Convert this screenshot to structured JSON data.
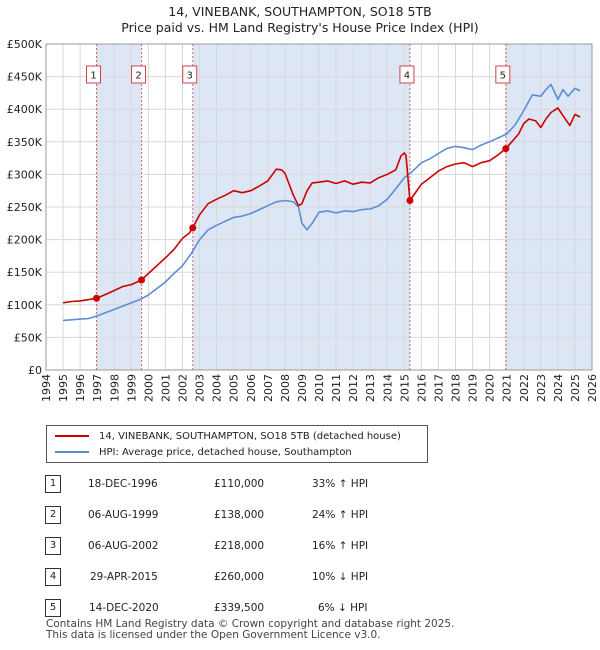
{
  "title_line1": "14, VINEBANK, SOUTHAMPTON, SO18 5TB",
  "title_line2": "Price paid vs. HM Land Registry's House Price Index (HPI)",
  "colors": {
    "red": "#cc0000",
    "blue": "#5b8ed6",
    "band": "#dde6f5",
    "dash": "#e06070"
  },
  "chart_data": {
    "type": "line",
    "title": "14, VINEBANK, SOUTHAMPTON, SO18 5TB — Price paid vs. HM Land Registry's House Price Index (HPI)",
    "xlim": [
      1994,
      2026
    ],
    "ylim": [
      0,
      500000
    ],
    "x_ticks": [
      "1994",
      "1995",
      "1996",
      "1997",
      "1998",
      "1999",
      "2000",
      "2001",
      "2002",
      "2003",
      "2004",
      "2005",
      "2006",
      "2007",
      "2008",
      "2009",
      "2010",
      "2011",
      "2012",
      "2013",
      "2014",
      "2015",
      "2016",
      "2017",
      "2018",
      "2019",
      "2020",
      "2021",
      "2022",
      "2023",
      "2024",
      "2025",
      "2026"
    ],
    "y_ticks": [
      {
        "v": 0,
        "label": "£0"
      },
      {
        "v": 50000,
        "label": "£50K"
      },
      {
        "v": 100000,
        "label": "£100K"
      },
      {
        "v": 150000,
        "label": "£150K"
      },
      {
        "v": 200000,
        "label": "£200K"
      },
      {
        "v": 250000,
        "label": "£250K"
      },
      {
        "v": 300000,
        "label": "£300K"
      },
      {
        "v": 350000,
        "label": "£350K"
      },
      {
        "v": 400000,
        "label": "£400K"
      },
      {
        "v": 450000,
        "label": "£450K"
      },
      {
        "v": 500000,
        "label": "£500K"
      }
    ],
    "series": [
      {
        "name": "14, VINEBANK, SOUTHAMPTON, SO18 5TB (detached house)",
        "color": "#cc0000",
        "x": [
          1995.0,
          1995.5,
          1996.0,
          1996.5,
          1996.96,
          1997.5,
          1998.0,
          1998.5,
          1999.0,
          1999.6,
          2000.0,
          2000.5,
          2001.0,
          2001.5,
          2002.0,
          2002.4,
          2002.6,
          2003.0,
          2003.5,
          2004.0,
          2004.5,
          2005.0,
          2005.5,
          2006.0,
          2006.5,
          2007.0,
          2007.5,
          2007.8,
          2008.0,
          2008.5,
          2008.8,
          2009.0,
          2009.3,
          2009.6,
          2010.0,
          2010.5,
          2011.0,
          2011.5,
          2012.0,
          2012.5,
          2013.0,
          2013.5,
          2014.0,
          2014.5,
          2014.8,
          2015.0,
          2015.1,
          2015.33,
          2015.6,
          2016.0,
          2016.5,
          2017.0,
          2017.5,
          2018.0,
          2018.5,
          2019.0,
          2019.5,
          2020.0,
          2020.5,
          2020.95,
          2021.3,
          2021.7,
          2022.0,
          2022.3,
          2022.7,
          2023.0,
          2023.3,
          2023.6,
          2024.0,
          2024.3,
          2024.7,
          2025.0,
          2025.3
        ],
        "y": [
          103000,
          105000,
          106000,
          108000,
          110000,
          116000,
          122000,
          128000,
          131000,
          138000,
          148000,
          160000,
          172000,
          185000,
          202000,
          210000,
          218000,
          238000,
          255000,
          262000,
          268000,
          275000,
          272000,
          275000,
          282000,
          290000,
          308000,
          307000,
          302000,
          268000,
          252000,
          255000,
          275000,
          287000,
          288000,
          290000,
          286000,
          290000,
          285000,
          288000,
          287000,
          295000,
          300000,
          307000,
          328000,
          333000,
          329000,
          260000,
          270000,
          285000,
          295000,
          305000,
          312000,
          316000,
          318000,
          312000,
          318000,
          321000,
          330000,
          339500,
          350000,
          362000,
          378000,
          385000,
          382000,
          372000,
          385000,
          395000,
          402000,
          390000,
          375000,
          392000,
          388000
        ]
      },
      {
        "name": "HPI: Average price, detached house, Southampton",
        "color": "#5b8ed6",
        "x": [
          1995.0,
          1995.5,
          1996.0,
          1996.5,
          1997.0,
          1997.5,
          1998.0,
          1998.5,
          1999.0,
          1999.5,
          2000.0,
          2000.5,
          2001.0,
          2001.5,
          2002.0,
          2002.5,
          2003.0,
          2003.5,
          2004.0,
          2004.5,
          2005.0,
          2005.5,
          2006.0,
          2006.5,
          2007.0,
          2007.5,
          2008.0,
          2008.5,
          2008.8,
          2009.0,
          2009.3,
          2009.6,
          2010.0,
          2010.5,
          2011.0,
          2011.5,
          2012.0,
          2012.5,
          2013.0,
          2013.5,
          2014.0,
          2014.5,
          2015.0,
          2015.5,
          2016.0,
          2016.5,
          2017.0,
          2017.5,
          2018.0,
          2018.5,
          2019.0,
          2019.5,
          2020.0,
          2020.5,
          2021.0,
          2021.5,
          2022.0,
          2022.5,
          2023.0,
          2023.3,
          2023.6,
          2024.0,
          2024.3,
          2024.6,
          2025.0,
          2025.3
        ],
        "y": [
          76000,
          77000,
          78000,
          79000,
          83000,
          88000,
          93000,
          98000,
          103000,
          108000,
          115000,
          125000,
          135000,
          148000,
          160000,
          178000,
          200000,
          215000,
          222000,
          228000,
          234000,
          236000,
          240000,
          246000,
          252000,
          258000,
          260000,
          258000,
          250000,
          225000,
          215000,
          225000,
          242000,
          244000,
          241000,
          244000,
          243000,
          246000,
          247000,
          252000,
          262000,
          278000,
          295000,
          305000,
          318000,
          324000,
          332000,
          340000,
          343000,
          341000,
          338000,
          345000,
          350000,
          356000,
          362000,
          376000,
          398000,
          422000,
          420000,
          430000,
          438000,
          415000,
          430000,
          420000,
          432000,
          428000
        ]
      }
    ],
    "transactions": [
      {
        "n": "1",
        "x": 1996.96,
        "y": 110000
      },
      {
        "n": "2",
        "x": 1999.6,
        "y": 138000
      },
      {
        "n": "3",
        "x": 2002.6,
        "y": 218000
      },
      {
        "n": "4",
        "x": 2015.33,
        "y": 260000
      },
      {
        "n": "5",
        "x": 2020.95,
        "y": 339500
      }
    ],
    "bands": [
      [
        1996.96,
        1999.6
      ],
      [
        2002.6,
        2015.33
      ],
      [
        2020.95,
        2026
      ]
    ]
  },
  "legend": {
    "red_label": "14, VINEBANK, SOUTHAMPTON, SO18 5TB (detached house)",
    "blue_label": "HPI: Average price, detached house, Southampton"
  },
  "table": [
    {
      "n": "1",
      "date": "18-DEC-1996",
      "price": "£110,000",
      "hpi": "33% ↑ HPI"
    },
    {
      "n": "2",
      "date": "06-AUG-1999",
      "price": "£138,000",
      "hpi": "24% ↑ HPI"
    },
    {
      "n": "3",
      "date": "06-AUG-2002",
      "price": "£218,000",
      "hpi": "16% ↑ HPI"
    },
    {
      "n": "4",
      "date": "29-APR-2015",
      "price": "£260,000",
      "hpi": "10% ↓ HPI"
    },
    {
      "n": "5",
      "date": "14-DEC-2020",
      "price": "£339,500",
      "hpi": "6% ↓ HPI"
    }
  ],
  "footer": {
    "line1": "Contains HM Land Registry data © Crown copyright and database right 2025.",
    "line2": "This data is licensed under the Open Government Licence v3.0."
  }
}
